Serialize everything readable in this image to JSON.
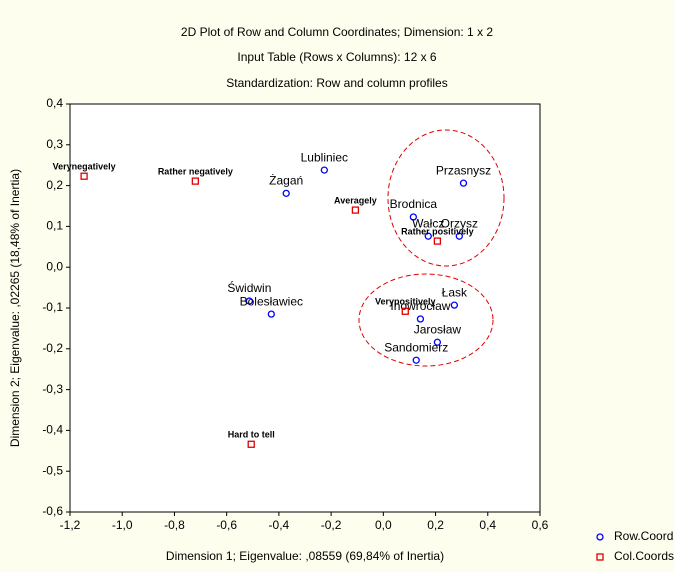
{
  "chart_data": {
    "type": "scatter",
    "title": "2D Plot of Row and Column Coordinates; Dimension:  1 x  2",
    "subtitle": "Input Table (Rows x Columns): 12 x 6",
    "subtitle2": "Standardization: Row and column profiles",
    "xlabel": "Dimension 1; Eigenvalue: ,08559 (69,84% of Inertia)",
    "ylabel": "Dimension 2; Eigenvalue: ,02265 (18,48% of Inertia)",
    "xlim": [
      -1.2,
      0.6
    ],
    "ylim": [
      -0.6,
      0.4
    ],
    "xticks": [
      {
        "value": -1.2,
        "label": "-1,2"
      },
      {
        "value": -1.0,
        "label": "-1,0"
      },
      {
        "value": -0.8,
        "label": "-0,8"
      },
      {
        "value": -0.6,
        "label": "-0,6"
      },
      {
        "value": -0.4,
        "label": "-0,4"
      },
      {
        "value": -0.2,
        "label": "-0,2"
      },
      {
        "value": 0,
        "label": "0,0"
      },
      {
        "value": 0.2,
        "label": "0,2"
      },
      {
        "value": 0.4,
        "label": "0,4"
      },
      {
        "value": 0.6,
        "label": "0,6"
      }
    ],
    "yticks": [
      {
        "value": 0.4,
        "label": "0,4"
      },
      {
        "value": 0.3,
        "label": "0,3"
      },
      {
        "value": 0.2,
        "label": "0,2"
      },
      {
        "value": 0.1,
        "label": "0,1"
      },
      {
        "value": 0,
        "label": "0,0"
      },
      {
        "value": -0.1,
        "label": "-0,1"
      },
      {
        "value": -0.2,
        "label": "-0,2"
      },
      {
        "value": -0.3,
        "label": "-0,3"
      },
      {
        "value": -0.4,
        "label": "-0,4"
      },
      {
        "value": -0.5,
        "label": "-0,5"
      },
      {
        "value": -0.6,
        "label": "-0,6"
      }
    ],
    "legend": "bottom-right",
    "series": [
      {
        "name": "Row.Coords",
        "color": "#0000ff",
        "marker": "circle",
        "labels": [
          "Lubliniec",
          "Przasnysz",
          "Brodnica",
          "Wałcz",
          "Orzysz",
          "Żagań",
          "Świdwin",
          "Bolesławiec",
          "Łask",
          "Inowrocław",
          "Jarosław",
          "Sandomierz"
        ],
        "x": [
          -0.226,
          0.307,
          0.115,
          0.172,
          0.291,
          -0.372,
          -0.513,
          -0.429,
          0.272,
          0.142,
          0.207,
          0.126
        ],
        "values": [
          0.238,
          0.206,
          0.123,
          0.076,
          0.076,
          0.181,
          -0.083,
          -0.115,
          -0.093,
          -0.127,
          -0.184,
          -0.228
        ]
      },
      {
        "name": "Col.Coords",
        "color": "#e00000",
        "marker": "square",
        "labels": [
          "Verynegatively",
          "Rather negatively",
          "Averagely",
          "Rather positively",
          "Verypositively",
          "Hard to tell"
        ],
        "x": [
          -1.146,
          -0.72,
          -0.107,
          0.207,
          0.084,
          -0.506
        ],
        "values": [
          0.223,
          0.211,
          0.14,
          0.064,
          -0.108,
          -0.434
        ]
      }
    ]
  }
}
